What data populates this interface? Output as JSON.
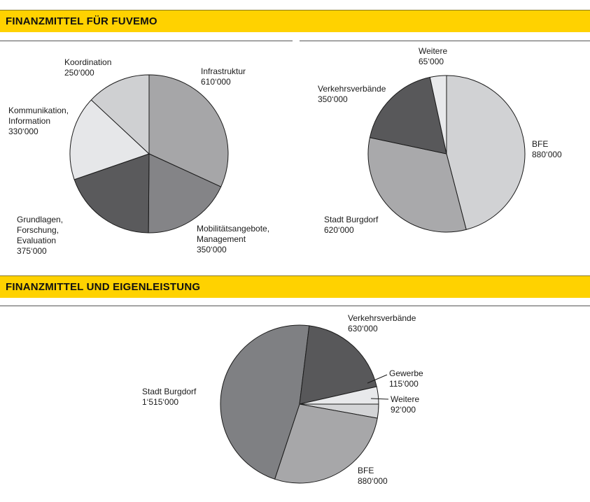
{
  "sections": [
    {
      "title": "FINANZMITTEL FÜR FUVEMO"
    },
    {
      "title": "FINANZMITTEL UND EIGENLEISTUNG"
    }
  ],
  "chart_data": [
    {
      "type": "pie",
      "title": "",
      "categories": [
        "Infrastruktur",
        "Mobilitätsangebote, Management",
        "Grundlagen, Forschung, Evaluation",
        "Kommunikation, Information",
        "Koordination"
      ],
      "values": [
        610000,
        350000,
        375000,
        330000,
        250000
      ],
      "value_labels": [
        "610‘000",
        "350‘000",
        "375‘000",
        "330‘000",
        "250‘000"
      ],
      "label_lines": [
        [
          "Infrastruktur",
          "610‘000"
        ],
        [
          "Mobilitätsangebote,",
          "Management",
          "350‘000"
        ],
        [
          "Grundlagen,",
          "Forschung,",
          "Evaluation",
          "375‘000"
        ],
        [
          "Kommunikation,",
          "Information",
          "330‘000"
        ],
        [
          "Koordination",
          "250‘000"
        ]
      ],
      "colors": [
        "#a6a6a8",
        "#848487",
        "#5a5a5c",
        "#e6e7e9",
        "#cfd0d2"
      ],
      "start_angle_deg": 0,
      "direction": "clockwise",
      "legend": "none"
    },
    {
      "type": "pie",
      "title": "",
      "categories": [
        "BFE",
        "Stadt Burgdorf",
        "Verkehrsverbände",
        "Weitere"
      ],
      "values": [
        880000,
        620000,
        350000,
        65000
      ],
      "value_labels": [
        "880‘000",
        "620‘000",
        "350‘000",
        "65‘000"
      ],
      "label_lines": [
        [
          "BFE",
          "880‘000"
        ],
        [
          "Stadt Burgdorf",
          "620‘000"
        ],
        [
          "Verkehrsverbände",
          "350‘000"
        ],
        [
          "Weitere",
          "65‘000"
        ]
      ],
      "colors": [
        "#d1d2d4",
        "#a9a9ab",
        "#58585a",
        "#e8e9eb"
      ],
      "start_angle_deg": 0,
      "direction": "clockwise",
      "legend": "none"
    },
    {
      "type": "pie",
      "title": "",
      "categories": [
        "Weitere",
        "BFE",
        "Stadt Burgdorf",
        "Verkehrsverbände",
        "Gewerbe"
      ],
      "values": [
        92000,
        880000,
        1515000,
        630000,
        115000
      ],
      "value_labels": [
        "92‘000",
        "880‘000",
        "1‘515‘000",
        "630‘000",
        "115‘000"
      ],
      "label_lines": [
        [
          "Weitere",
          "92‘000"
        ],
        [
          "BFE",
          "880‘000"
        ],
        [
          "Stadt Burgdorf",
          "1‘515‘000"
        ],
        [
          "Verkehrsverbände",
          "630‘000"
        ],
        [
          "Gewerbe",
          "115‘000"
        ]
      ],
      "colors": [
        "#d3d4d6",
        "#a7a7a9",
        "#7f8083",
        "#58585a",
        "#e8e9eb"
      ],
      "start_angle_deg": 90,
      "direction": "clockwise",
      "legend": "none"
    }
  ]
}
